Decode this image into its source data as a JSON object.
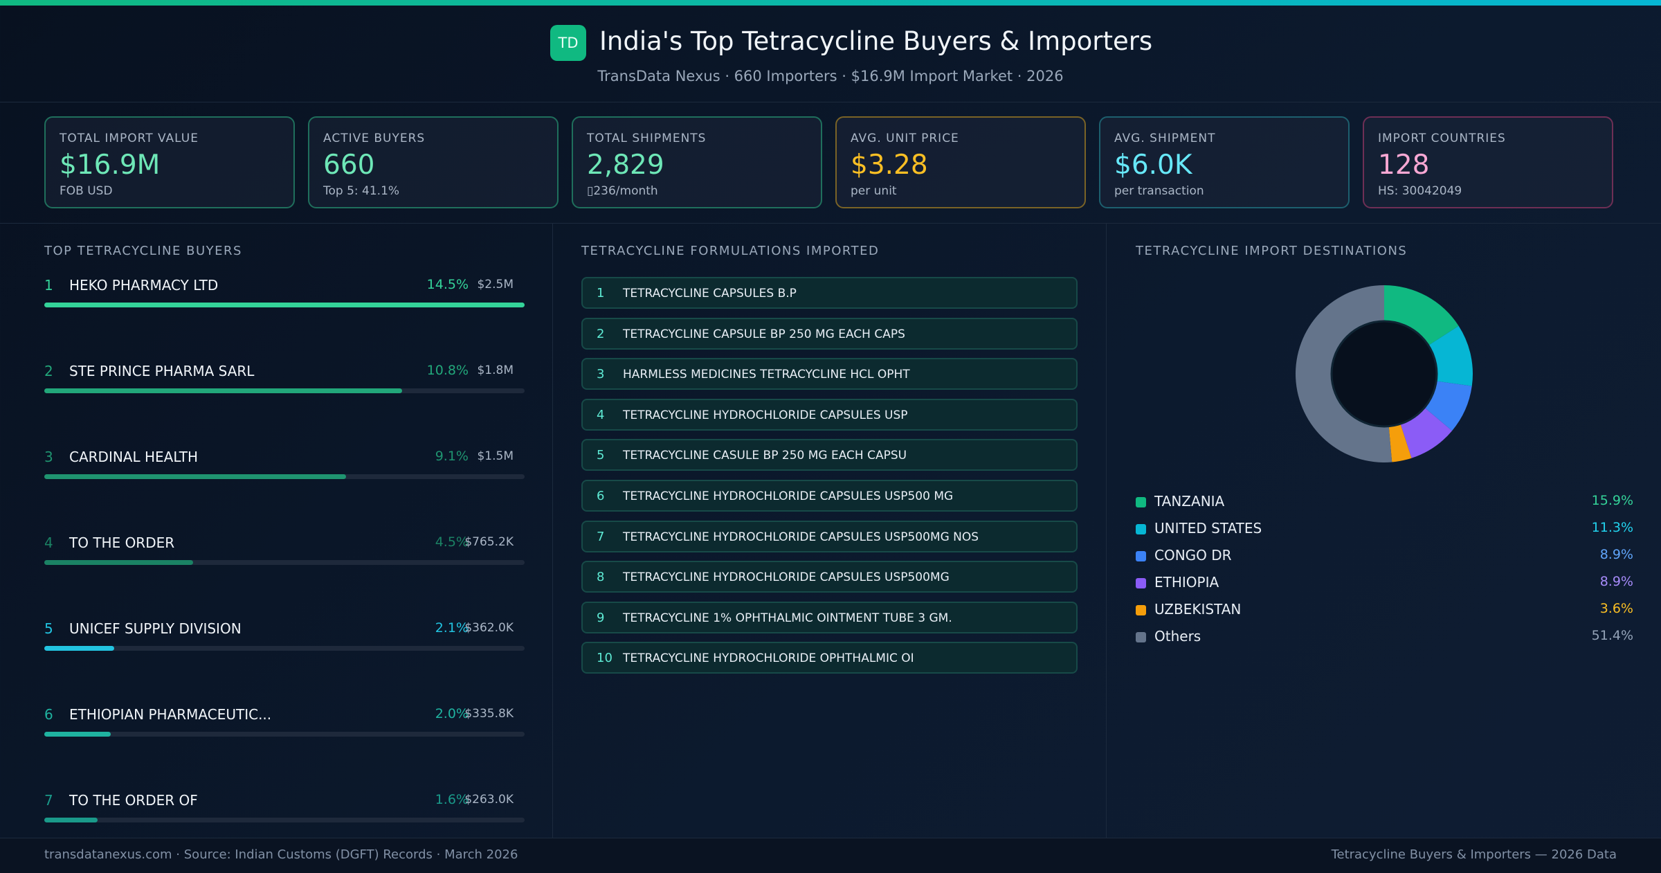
{
  "header": {
    "logo": "TD",
    "title": "India's Top Tetracycline Buyers & Importers",
    "subtitle": "TransData Nexus · 660 Importers · $16.9M Import Market · 2026"
  },
  "kpis": [
    {
      "label": "TOTAL IMPORT VALUE",
      "value": "$16.9M",
      "sub": "FOB USD",
      "color": "#6ee7b7",
      "border": "#1f6f5c"
    },
    {
      "label": "ACTIVE BUYERS",
      "value": "660",
      "sub": "Top 5: 41.1%",
      "color": "#6ee7b7",
      "border": "#1f6f5c"
    },
    {
      "label": "TOTAL SHIPMENTS",
      "value": "2,829",
      "sub": "▯236/month",
      "color": "#6ee7b7",
      "border": "#1f6f5c"
    },
    {
      "label": "AVG. UNIT PRICE",
      "value": "$3.28",
      "sub": "per unit",
      "color": "#fbbf24",
      "border": "#7a6326"
    },
    {
      "label": "AVG. SHIPMENT",
      "value": "$6.0K",
      "sub": "per transaction",
      "color": "#67e8f9",
      "border": "#1d5f6e"
    },
    {
      "label": "IMPORT COUNTRIES",
      "value": "128",
      "sub": "HS: 30042049",
      "color": "#f9a8d4",
      "border": "#6e2f55"
    }
  ],
  "buyers": {
    "title": "TOP TETRACYCLINE BUYERS",
    "items": [
      {
        "rank": 1,
        "name": "HEKO PHARMACY LTD",
        "share": 14.5,
        "share_label": "14.5%",
        "value_label": "$2.5M",
        "color": "#34d399"
      },
      {
        "rank": 2,
        "name": "STE PRINCE PHARMA SARL",
        "share": 10.8,
        "share_label": "10.8%",
        "value_label": "$1.8M",
        "color": "#22a77a"
      },
      {
        "rank": 3,
        "name": "CARDINAL HEALTH",
        "share": 9.1,
        "share_label": "9.1%",
        "value_label": "$1.5M",
        "color": "#1f9470"
      },
      {
        "rank": 4,
        "name": "TO THE ORDER",
        "share": 4.5,
        "share_label": "4.5%",
        "value_label": "$765.2K",
        "color": "#1b8264"
      },
      {
        "rank": 5,
        "name": "UNICEF SUPPLY DIVISION",
        "share": 2.1,
        "share_label": "2.1%",
        "value_label": "$362.0K",
        "color": "#22c3e0"
      },
      {
        "rank": 6,
        "name": "ETHIOPIAN PHARMACEUTIC...",
        "share": 2.0,
        "share_label": "2.0%",
        "value_label": "$335.8K",
        "color": "#1fb3a0"
      },
      {
        "rank": 7,
        "name": "TO THE ORDER OF",
        "share": 1.6,
        "share_label": "1.6%",
        "value_label": "$263.0K",
        "color": "#1a9a8a"
      }
    ]
  },
  "formulations": {
    "title": "TETRACYCLINE FORMULATIONS IMPORTED",
    "items": [
      {
        "rank": 1,
        "name": "TETRACYCLINE CAPSULES B.P"
      },
      {
        "rank": 2,
        "name": "TETRACYCLINE CAPSULE BP 250 MG EACH CAPS"
      },
      {
        "rank": 3,
        "name": "HARMLESS MEDICINES TETRACYCLINE HCL OPHT"
      },
      {
        "rank": 4,
        "name": "TETRACYCLINE HYDROCHLORIDE CAPSULES USP"
      },
      {
        "rank": 5,
        "name": "TETRACYCLINE CASULE BP 250 MG EACH CAPSU"
      },
      {
        "rank": 6,
        "name": "TETRACYCLINE HYDROCHLORIDE CAPSULES USP500 MG"
      },
      {
        "rank": 7,
        "name": "TETRACYCLINE HYDROCHLORIDE CAPSULES USP500MG NOS"
      },
      {
        "rank": 8,
        "name": "TETRACYCLINE HYDROCHLORIDE CAPSULES USP500MG"
      },
      {
        "rank": 9,
        "name": "TETRACYCLINE 1% OPHTHALMIC OINTMENT TUBE 3 GM."
      },
      {
        "rank": 10,
        "name": "TETRACYCLINE HYDROCHLORIDE OPHTHALMIC OI"
      }
    ]
  },
  "chart_data": {
    "type": "pie",
    "title": "TETRACYCLINE IMPORT DESTINATIONS",
    "categories": [
      "TANZANIA",
      "UNITED STATES",
      "CONGO DR",
      "ETHIOPIA",
      "UZBEKISTAN",
      "Others"
    ],
    "values": [
      15.9,
      11.3,
      8.9,
      8.9,
      3.6,
      51.4
    ],
    "value_labels": [
      "15.9%",
      "11.3%",
      "8.9%",
      "8.9%",
      "3.6%",
      "51.4%"
    ],
    "colors": [
      "#10b981",
      "#06b6d4",
      "#3b82f6",
      "#8b5cf6",
      "#f59e0b",
      "#64748b"
    ],
    "label_colors": [
      "#34d399",
      "#22d3ee",
      "#60a5fa",
      "#a78bfa",
      "#fbbf24",
      "#94a3b8"
    ]
  },
  "footer": {
    "left": "transdatanexus.com · Source: Indian Customs (DGFT) Records · March 2026",
    "right": "Tetracycline Buyers & Importers — 2026 Data"
  }
}
